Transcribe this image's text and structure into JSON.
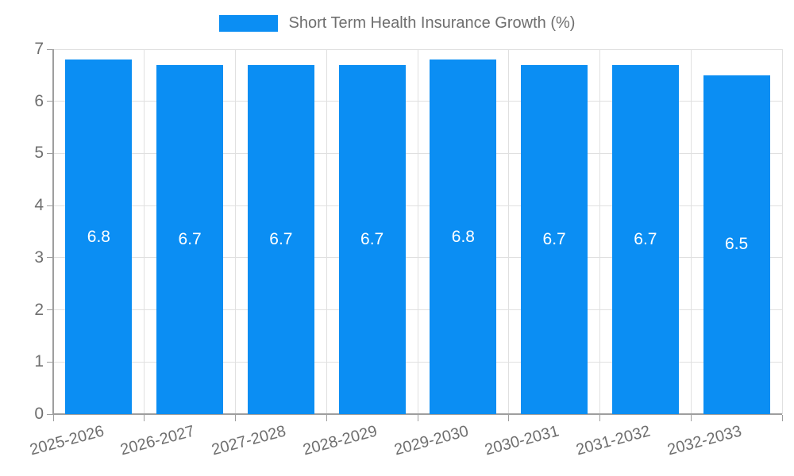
{
  "legend": {
    "label": "Short Term Health Insurance Growth (%)"
  },
  "chart_data": {
    "type": "bar",
    "title": "",
    "xlabel": "",
    "ylabel": "",
    "categories": [
      "2025-2026",
      "2026-2027",
      "2027-2028",
      "2028-2029",
      "2029-2030",
      "2030-2031",
      "2031-2032",
      "2032-2033"
    ],
    "series": [
      {
        "name": "Short Term Health Insurance Growth (%)",
        "values": [
          6.8,
          6.7,
          6.7,
          6.7,
          6.8,
          6.7,
          6.7,
          6.5
        ],
        "value_labels": [
          "6.8",
          "6.7",
          "6.7",
          "6.7",
          "6.8",
          "6.7",
          "6.7",
          "6.5"
        ]
      }
    ],
    "ylim": [
      0,
      7
    ],
    "y_ticks": [
      0,
      1,
      2,
      3,
      4,
      5,
      6,
      7
    ],
    "grid": true,
    "legend_position": "top-center",
    "bar_label_position": "center-inside"
  },
  "colors": {
    "bar": "#0b8ef3",
    "text": "#6f6f6f",
    "grid": "#e0e0e0",
    "axis": "#9e9e9e",
    "value_text": "#ffffff",
    "background": "#ffffff"
  }
}
